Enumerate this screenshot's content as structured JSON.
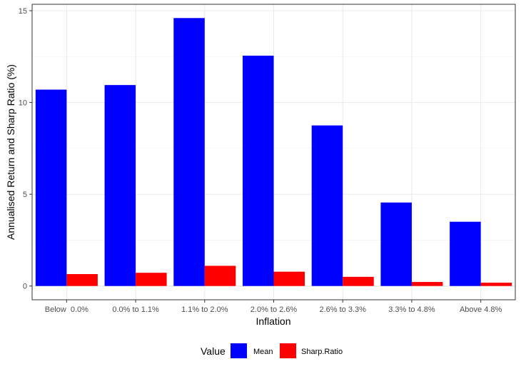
{
  "chart_data": {
    "type": "bar",
    "categories": [
      "Below  0.0%",
      "0.0% to 1.1%",
      "1.1% to 2.0%",
      "2.0% to 2.6%",
      "2.6% to 3.3%",
      "3.3% to 4.8%",
      "Above 4.8%"
    ],
    "series": [
      {
        "name": "Mean",
        "color": "#0000ff",
        "values": [
          10.7,
          10.95,
          14.6,
          12.55,
          8.75,
          4.55,
          3.5
        ]
      },
      {
        "name": "Sharp.Ratio",
        "color": "#ff0000",
        "values": [
          0.65,
          0.72,
          1.1,
          0.78,
          0.5,
          0.22,
          0.18
        ]
      }
    ],
    "title": "",
    "xlabel": "Inflation",
    "ylabel": "Annualised Return and Sharp Ratio (%)",
    "ylim": [
      -0.75,
      15.35
    ],
    "yticks": [
      0,
      5,
      10,
      15
    ],
    "grid": true,
    "legend": {
      "title": "Value",
      "position": "bottom"
    }
  }
}
